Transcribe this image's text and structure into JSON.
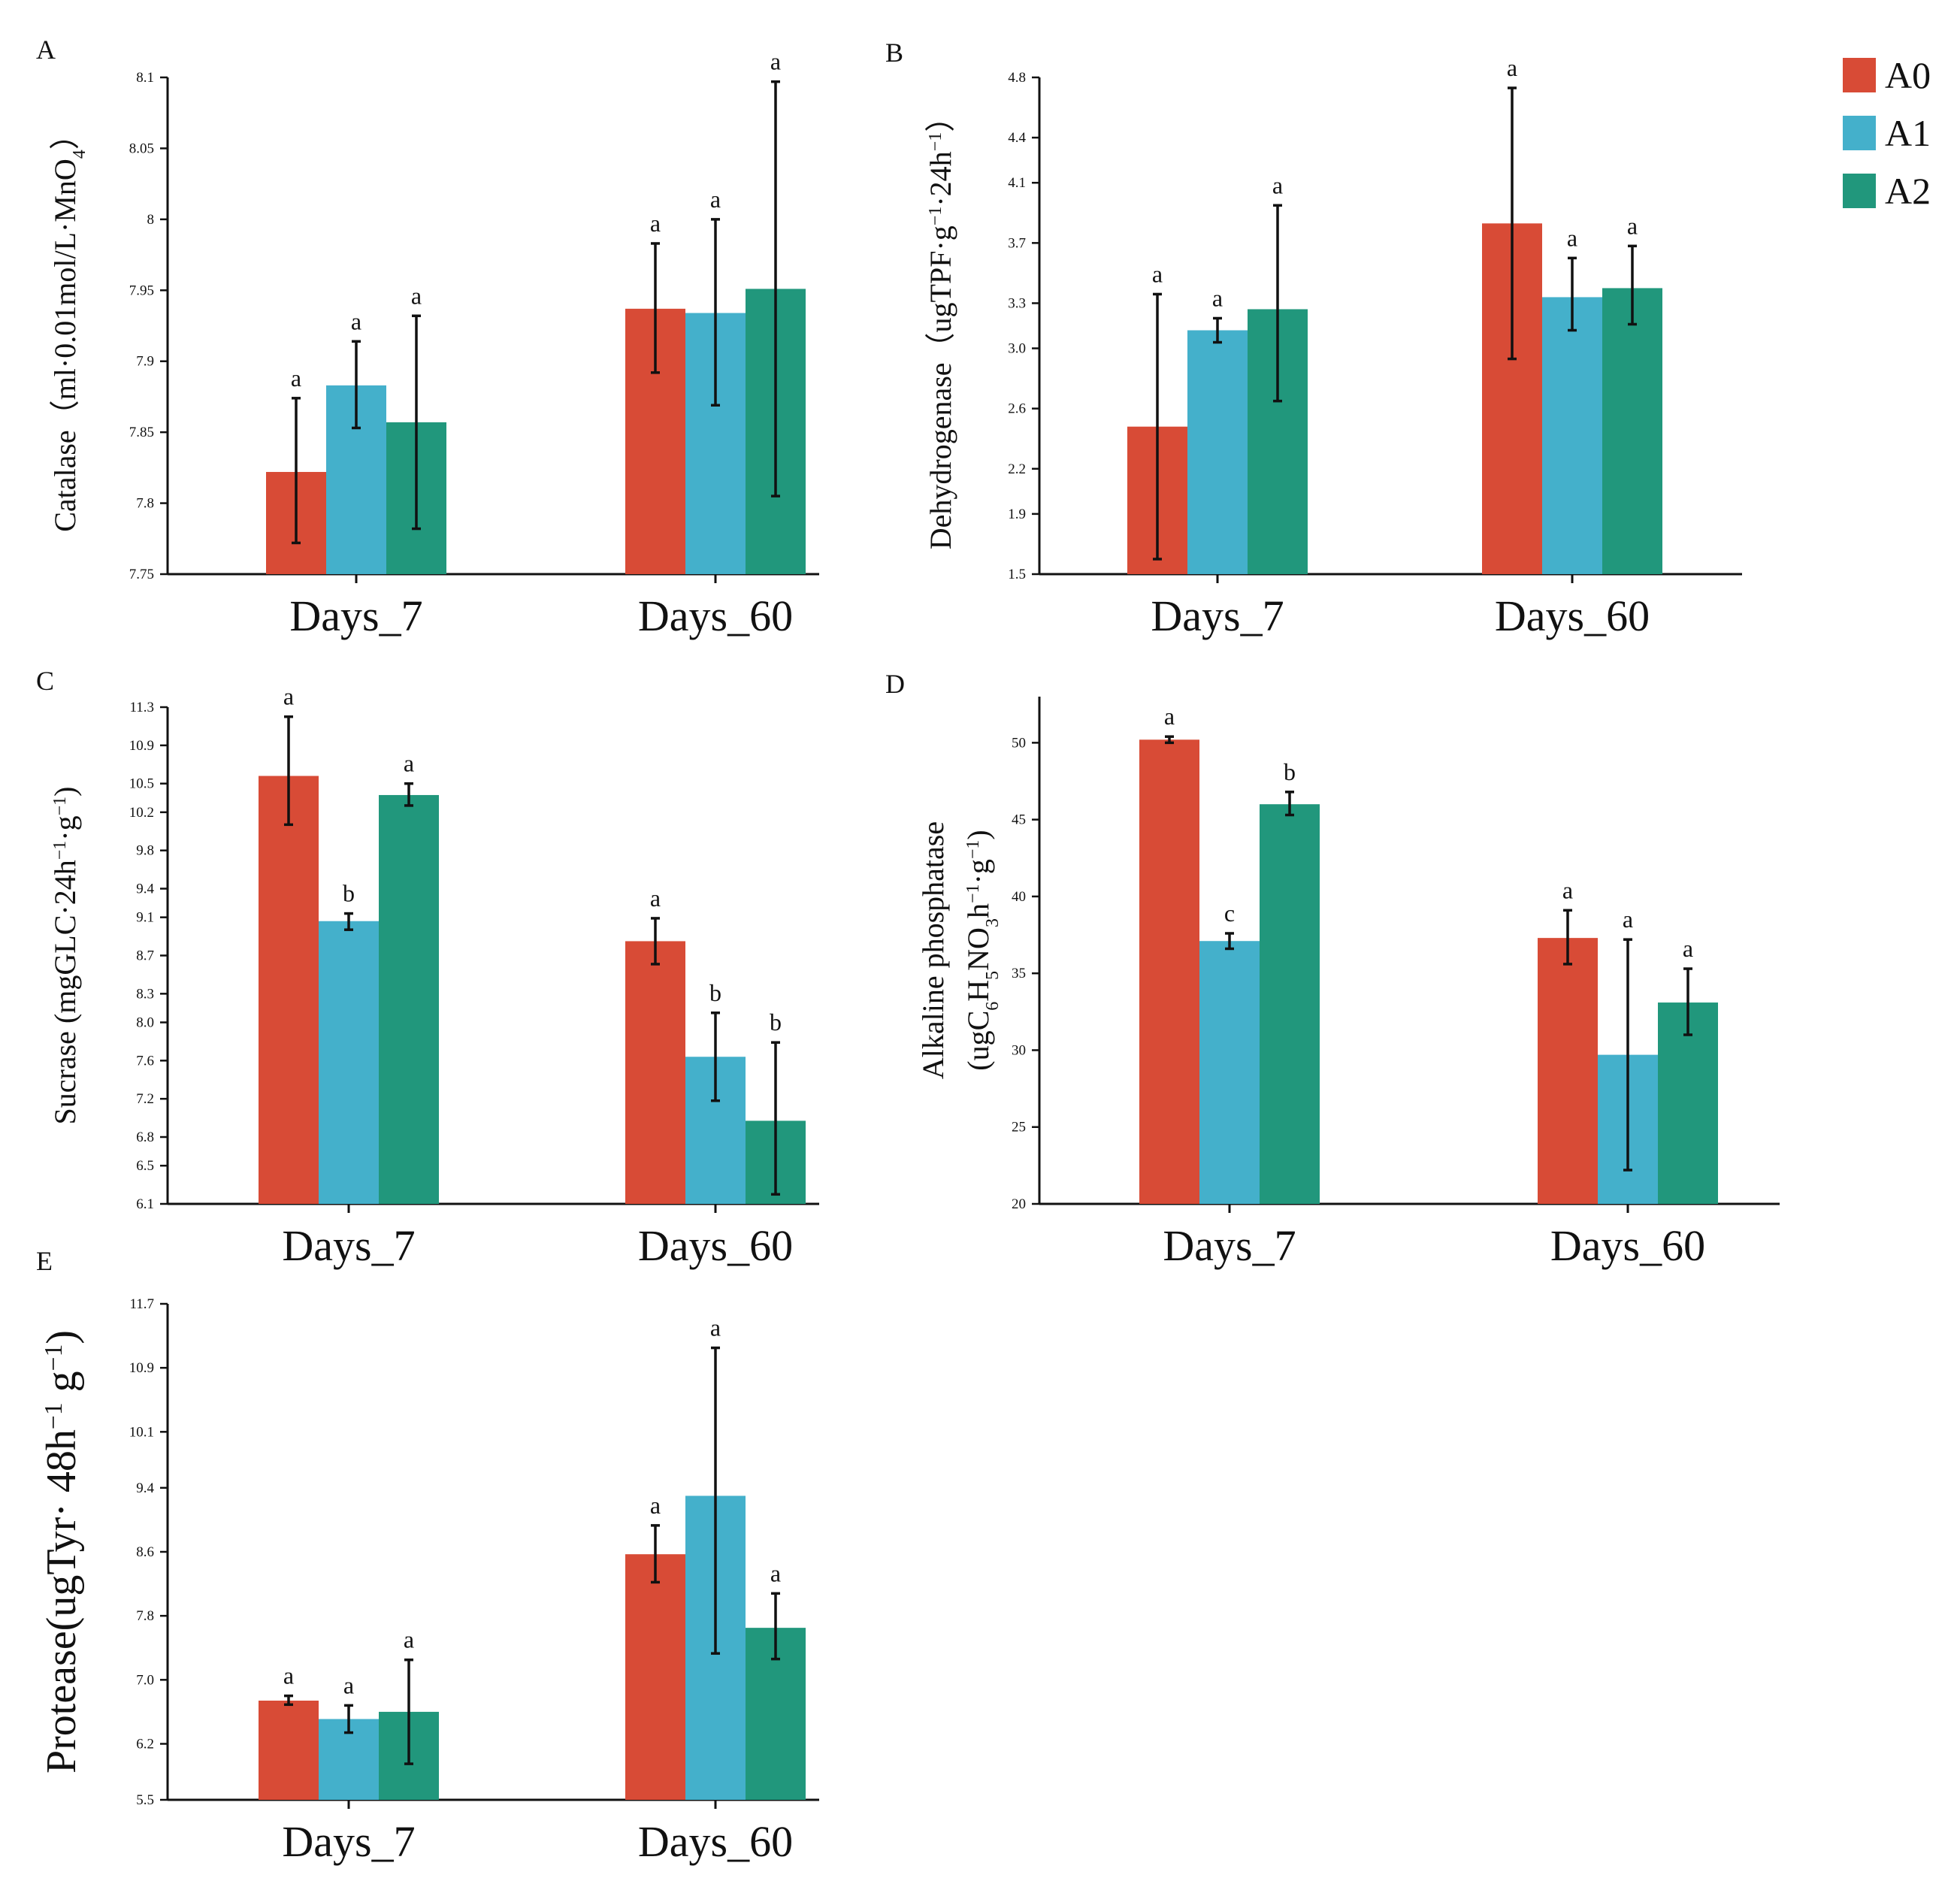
{
  "colors": {
    "A0": "#d84b36",
    "A1": "#44b0cb",
    "A2": "#21977c",
    "axis": "#111111"
  },
  "chart_data": [
    {
      "id": "A",
      "type": "bar",
      "panel_label": "A",
      "ylabel": "Catalase（ml·0.01mol/L·MnO4）",
      "ylabel_parts": [
        "Catalase（ml·0.01mol/L·MnO",
        "4",
        "）"
      ],
      "categories": [
        "Days_7",
        "Days_60"
      ],
      "ylim": [
        7.75,
        8.1
      ],
      "yticks": [
        "7.75",
        "7.8",
        "7.85",
        "7.9",
        "7.95",
        "8",
        "8.05",
        "8.1"
      ],
      "series": [
        {
          "name": "A0",
          "values": [
            7.822,
            7.937
          ],
          "err_low": [
            7.772,
            7.892
          ],
          "err_high": [
            7.874,
            7.983
          ],
          "sig": [
            "a",
            "a"
          ]
        },
        {
          "name": "A1",
          "values": [
            7.883,
            7.934
          ],
          "err_low": [
            7.853,
            7.869
          ],
          "err_high": [
            7.914,
            8.0
          ],
          "sig": [
            "a",
            "a"
          ]
        },
        {
          "name": "A2",
          "values": [
            7.857,
            7.951
          ],
          "err_low": [
            7.782,
            7.805
          ],
          "err_high": [
            7.932,
            8.097
          ],
          "sig": [
            "a",
            "a"
          ]
        }
      ]
    },
    {
      "id": "B",
      "type": "bar",
      "panel_label": "B",
      "ylabel": "Dehydrogenase（ugTPF·g⁻¹·24h⁻¹）",
      "ylabel_parts": [
        "Dehydrogenase（ugTPF·g",
        "−1",
        "·24h",
        "−1",
        "）"
      ],
      "categories": [
        "Days_7",
        "Days_60"
      ],
      "ylim": [
        1.5,
        4.8
      ],
      "yticks": [
        "1.5",
        "1.9",
        "2.2",
        "2.6",
        "3.0",
        "3.3",
        "3.7",
        "4.1",
        "4.4",
        "4.8"
      ],
      "series": [
        {
          "name": "A0",
          "values": [
            2.48,
            3.83
          ],
          "err_low": [
            1.6,
            2.93
          ],
          "err_high": [
            3.36,
            4.73
          ],
          "sig": [
            "a",
            "a"
          ]
        },
        {
          "name": "A1",
          "values": [
            3.12,
            3.34
          ],
          "err_low": [
            3.04,
            3.12
          ],
          "err_high": [
            3.2,
            3.6
          ],
          "sig": [
            "a",
            "a"
          ]
        },
        {
          "name": "A2",
          "values": [
            3.26,
            3.4
          ],
          "err_low": [
            2.65,
            3.16
          ],
          "err_high": [
            3.95,
            3.68
          ],
          "sig": [
            "a",
            "a"
          ]
        }
      ]
    },
    {
      "id": "C",
      "type": "bar",
      "panel_label": "C",
      "ylabel": "Sucrase (mgGLC·24h⁻¹·g⁻¹)",
      "ylabel_parts": [
        "Sucrase (mgGLC·24h",
        "−1",
        "·g",
        "−1",
        ")"
      ],
      "categories": [
        "Days_7",
        "Days_60"
      ],
      "ylim": [
        6.1,
        11.3
      ],
      "yticks": [
        "6.1",
        "6.5",
        "6.8",
        "7.2",
        "7.6",
        "8.0",
        "8.3",
        "8.7",
        "9.1",
        "9.4",
        "9.8",
        "10.2",
        "10.5",
        "10.9",
        "11.3"
      ],
      "series": [
        {
          "name": "A0",
          "values": [
            10.58,
            8.85
          ],
          "err_low": [
            10.07,
            8.61
          ],
          "err_high": [
            11.2,
            9.09
          ],
          "sig": [
            "a",
            "a"
          ]
        },
        {
          "name": "A1",
          "values": [
            9.06,
            7.64
          ],
          "err_low": [
            8.97,
            7.18
          ],
          "err_high": [
            9.14,
            8.1
          ],
          "sig": [
            "b",
            "b"
          ]
        },
        {
          "name": "A2",
          "values": [
            10.38,
            6.97
          ],
          "err_low": [
            10.27,
            6.2
          ],
          "err_high": [
            10.5,
            7.79
          ],
          "sig": [
            "a",
            "b"
          ]
        }
      ]
    },
    {
      "id": "D",
      "type": "bar",
      "panel_label": "D",
      "ylabel": "Alkaline phosphatase (ugC6H5NO3h⁻¹·g⁻¹)",
      "ylabel_line1": "Alkaline phosphatase",
      "ylabel_parts": [
        "(ugC",
        "6",
        "H",
        "5",
        "NO",
        "3",
        "h",
        "−1",
        "·g",
        "−1",
        ")"
      ],
      "categories": [
        "Days_7",
        "Days_60"
      ],
      "ylim": [
        20,
        53
      ],
      "yticks": [
        "20",
        "25",
        "30",
        "35",
        "40",
        "45",
        "50"
      ],
      "series": [
        {
          "name": "A0",
          "values": [
            50.2,
            37.3
          ],
          "err_low": [
            50.0,
            35.6
          ],
          "err_high": [
            50.4,
            39.1
          ],
          "sig": [
            "a",
            "a"
          ]
        },
        {
          "name": "A1",
          "values": [
            37.1,
            29.7
          ],
          "err_low": [
            36.6,
            22.2
          ],
          "err_high": [
            37.6,
            37.2
          ],
          "sig": [
            "c",
            "a"
          ]
        },
        {
          "name": "A2",
          "values": [
            46.0,
            33.1
          ],
          "err_low": [
            45.3,
            31.0
          ],
          "err_high": [
            46.8,
            35.3
          ],
          "sig": [
            "b",
            "a"
          ]
        }
      ]
    },
    {
      "id": "E",
      "type": "bar",
      "panel_label": "E",
      "ylabel": "Protease(ugTyr· 48h⁻¹ g⁻¹)",
      "ylabel_parts": [
        "Protease(ugTyr· 48h",
        "−1",
        " g",
        "−1",
        ")"
      ],
      "categories": [
        "Days_7",
        "Days_60"
      ],
      "ylim": [
        5.5,
        11.7
      ],
      "yticks": [
        "5.5",
        "6.2",
        "7.0",
        "7.8",
        "8.6",
        "9.4",
        "10.1",
        "10.9",
        "11.7"
      ],
      "series": [
        {
          "name": "A0",
          "values": [
            6.74,
            8.57
          ],
          "err_low": [
            6.69,
            8.22
          ],
          "err_high": [
            6.8,
            8.93
          ],
          "sig": [
            "a",
            "a"
          ]
        },
        {
          "name": "A1",
          "values": [
            6.51,
            9.3
          ],
          "err_low": [
            6.34,
            7.33
          ],
          "err_high": [
            6.68,
            11.15
          ],
          "sig": [
            "a",
            "a"
          ]
        },
        {
          "name": "A2",
          "values": [
            6.6,
            7.65
          ],
          "err_low": [
            5.95,
            7.26
          ],
          "err_high": [
            7.25,
            8.08
          ],
          "sig": [
            "a",
            "a"
          ]
        }
      ]
    }
  ],
  "legend": {
    "items": [
      "A0",
      "A1",
      "A2"
    ]
  }
}
